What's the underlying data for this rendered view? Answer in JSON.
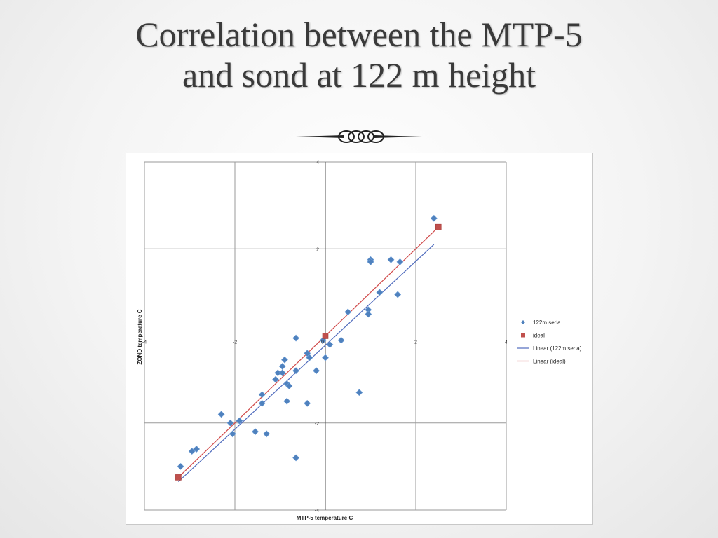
{
  "slide": {
    "title_line1": "Correlation between the MTP-5",
    "title_line2": "and sond at 122 m height"
  },
  "chart_data": {
    "type": "scatter",
    "title": "",
    "xlabel": "MTP-5 temperature C",
    "ylabel": "ZOND temperature C",
    "xlim": [
      -4,
      4
    ],
    "ylim": [
      -4,
      4
    ],
    "x_ticks": [
      "-4",
      "-2",
      "0",
      "2",
      "4"
    ],
    "y_ticks": [
      "4",
      "2",
      "0",
      "-2",
      "-4"
    ],
    "grid": true,
    "legend_position": "right",
    "legend": [
      {
        "label": "122m seria",
        "kind": "point",
        "color": "#4f81bd"
      },
      {
        "label": "ideal",
        "kind": "square",
        "color": "#c0504d"
      },
      {
        "label": "Linear (122m seria)",
        "kind": "line",
        "color": "#4f6bbd"
      },
      {
        "label": "Linear (ideal)",
        "kind": "line",
        "color": "#d04a4a"
      }
    ],
    "series": [
      {
        "name": "122m seria",
        "color": "#4f81bd",
        "points": [
          [
            2.4,
            2.7
          ],
          [
            1.0,
            1.75
          ],
          [
            1.0,
            1.7
          ],
          [
            1.45,
            1.75
          ],
          [
            1.65,
            1.7
          ],
          [
            1.2,
            1.0
          ],
          [
            1.6,
            0.95
          ],
          [
            0.95,
            0.6
          ],
          [
            0.95,
            0.5
          ],
          [
            0.5,
            0.55
          ],
          [
            -0.65,
            -0.05
          ],
          [
            0.35,
            -0.1
          ],
          [
            -0.05,
            -0.1
          ],
          [
            0.1,
            -0.2
          ],
          [
            -0.4,
            -0.4
          ],
          [
            -0.35,
            -0.5
          ],
          [
            0.0,
            -0.5
          ],
          [
            -0.9,
            -0.55
          ],
          [
            -0.95,
            -0.7
          ],
          [
            -0.65,
            -0.8
          ],
          [
            -0.2,
            -0.8
          ],
          [
            -1.05,
            -0.85
          ],
          [
            -0.95,
            -0.85
          ],
          [
            -1.1,
            -1.0
          ],
          [
            -0.85,
            -1.1
          ],
          [
            -0.8,
            -1.15
          ],
          [
            -1.4,
            -1.35
          ],
          [
            0.75,
            -1.3
          ],
          [
            -0.85,
            -1.5
          ],
          [
            -0.4,
            -1.55
          ],
          [
            -1.4,
            -1.55
          ],
          [
            -2.3,
            -1.8
          ],
          [
            -2.1,
            -2.0
          ],
          [
            -1.9,
            -1.95
          ],
          [
            -2.05,
            -2.25
          ],
          [
            -1.55,
            -2.2
          ],
          [
            -1.3,
            -2.25
          ],
          [
            -2.85,
            -2.6
          ],
          [
            -2.95,
            -2.65
          ],
          [
            -0.65,
            -2.8
          ],
          [
            -3.2,
            -3.0
          ]
        ]
      },
      {
        "name": "ideal",
        "color": "#c0504d",
        "points": [
          [
            0,
            0
          ],
          [
            2.5,
            2.5
          ],
          [
            -3.25,
            -3.25
          ]
        ]
      }
    ],
    "trendlines": [
      {
        "name": "Linear (122m seria)",
        "color": "#4f6bbd",
        "x": [
          -3.25,
          2.4
        ],
        "y": [
          -3.35,
          2.1
        ]
      },
      {
        "name": "Linear (ideal)",
        "color": "#d04a4a",
        "x": [
          -3.25,
          2.5
        ],
        "y": [
          -3.25,
          2.5
        ]
      }
    ]
  }
}
